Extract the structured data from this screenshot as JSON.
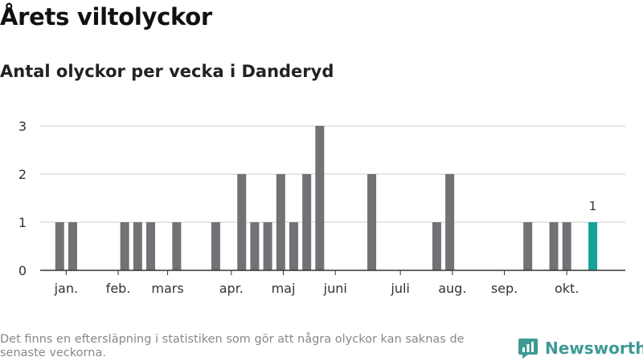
{
  "header": {
    "title": "Årets viltolyckor",
    "subtitle": "Antal olyckor per vecka i Danderyd"
  },
  "footer": {
    "note": "Det finns en eftersläpning i statistiken som gör att några olyckor kan saknas de senaste veckorna.",
    "brand": "Newsworthy"
  },
  "colors": {
    "bar": "#727175",
    "highlight": "#13a39a",
    "grid": "#dddddd",
    "axis": "#333333",
    "brand": "#3e9a93"
  },
  "chart_data": {
    "type": "bar",
    "x": [
      2,
      3,
      7,
      8,
      9,
      11,
      14,
      16,
      17,
      18,
      19,
      20,
      21,
      22,
      26,
      31,
      32,
      38,
      40,
      41,
      43
    ],
    "values": [
      1,
      1,
      1,
      1,
      1,
      1,
      1,
      2,
      1,
      1,
      2,
      1,
      2,
      3,
      2,
      1,
      2,
      1,
      1,
      1,
      1
    ],
    "highlight_index": 20,
    "highlight_label": "1",
    "xlim": [
      0.5,
      45.5
    ],
    "ylim": [
      0,
      3
    ],
    "yticks": [
      0,
      1,
      2,
      3
    ],
    "month_ticks": [
      {
        "label": "jan.",
        "x": 2.5
      },
      {
        "label": "feb.",
        "x": 6.5
      },
      {
        "label": "mars",
        "x": 10.3
      },
      {
        "label": "apr.",
        "x": 15.2
      },
      {
        "label": "maj",
        "x": 19.2
      },
      {
        "label": "juni",
        "x": 23.2
      },
      {
        "label": "juli",
        "x": 28.2
      },
      {
        "label": "aug.",
        "x": 32.2
      },
      {
        "label": "sep.",
        "x": 36.2
      },
      {
        "label": "okt.",
        "x": 41.0
      }
    ],
    "grid": true
  }
}
